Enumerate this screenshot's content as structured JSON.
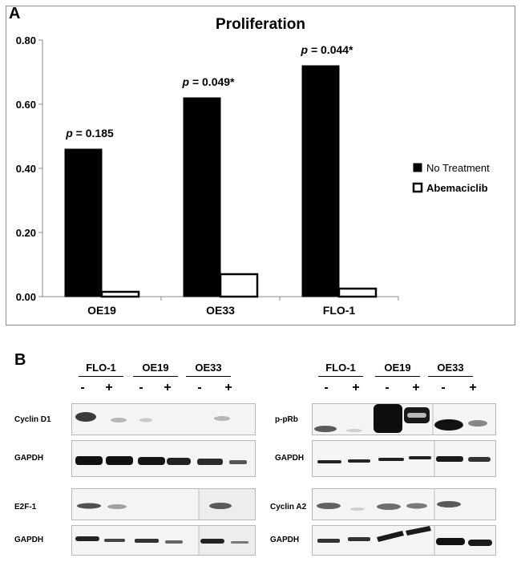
{
  "panel_a": {
    "letter": "A"
  },
  "panel_b": {
    "letter": "B"
  },
  "chart_data": {
    "type": "bar",
    "title": "Proliferation",
    "categories": [
      "OE19",
      "OE33",
      "FLO-1"
    ],
    "series": [
      {
        "name": "No Treatment",
        "values": [
          0.46,
          0.62,
          0.72
        ],
        "color": "#000000"
      },
      {
        "name": "Abemaciclib",
        "values": [
          0.015,
          0.07,
          0.025
        ],
        "color": "#ffffff"
      }
    ],
    "ylim": [
      0,
      0.8
    ],
    "yticks": [
      "0.00",
      "0.20",
      "0.40",
      "0.60",
      "0.80"
    ],
    "ytick_values": [
      0,
      0.2,
      0.4,
      0.6,
      0.8
    ],
    "annotations": [
      {
        "prefix": "p",
        "text": " = 0.185",
        "category": "OE19"
      },
      {
        "prefix": "p",
        "text": " = 0.049*",
        "category": "OE33"
      },
      {
        "prefix": "p",
        "text": " = 0.044*",
        "category": "FLO-1"
      }
    ],
    "xlabel": "",
    "ylabel": "",
    "legend_position": "right"
  },
  "blots": {
    "groups": [
      "FLO-1",
      "OE19",
      "OE33"
    ],
    "signs": [
      "-",
      "+"
    ],
    "left_rows": [
      "Cyclin D1",
      "GAPDH",
      "E2F-1",
      "GAPDH"
    ],
    "right_rows": [
      "p-pRb",
      "GAPDH",
      "Cyclin A2",
      "GAPDH"
    ]
  }
}
